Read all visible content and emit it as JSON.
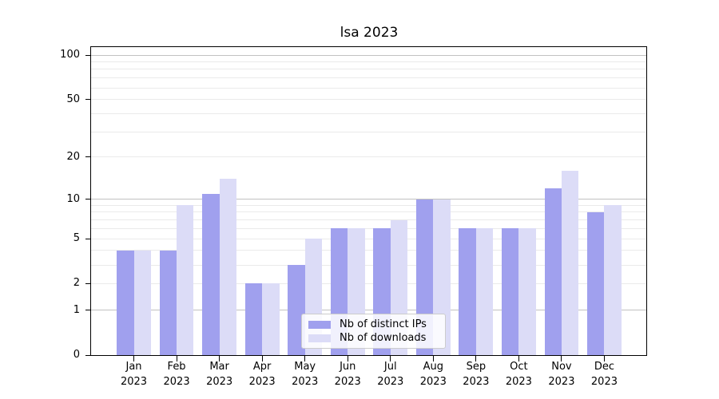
{
  "title": "lsa 2023",
  "legend": {
    "items": [
      {
        "label": "Nb of distinct IPs",
        "color": "#a0a0ee"
      },
      {
        "label": "Nb of downloads",
        "color": "#dcdcf7"
      }
    ]
  },
  "colors": {
    "axis": "#000000",
    "grid_major": "#c2c2c2",
    "grid_minor": "#eaeaea",
    "background": "#ffffff",
    "legend_border": "#cccccc",
    "bar_dark": "#a0a0ee",
    "bar_light": "#dcdcf7"
  },
  "chart_data": {
    "type": "bar",
    "title": "lsa 2023",
    "categories": [
      "Jan 2023",
      "Feb 2023",
      "Mar 2023",
      "Apr 2023",
      "May 2023",
      "Jun 2023",
      "Jul 2023",
      "Aug 2023",
      "Sep 2023",
      "Oct 2023",
      "Nov 2023",
      "Dec 2023"
    ],
    "series": [
      {
        "name": "Nb of distinct IPs",
        "color": "#a0a0ee",
        "values": [
          4,
          4,
          11,
          2,
          3,
          6,
          6,
          10,
          6,
          6,
          12,
          8
        ]
      },
      {
        "name": "Nb of downloads",
        "color": "#dcdcf7",
        "values": [
          4,
          9,
          14,
          2,
          5,
          6,
          7,
          10,
          6,
          6,
          16,
          9
        ]
      }
    ],
    "xlabel": "",
    "ylabel": "",
    "yscale": "log1p",
    "ylim": [
      0,
      113
    ],
    "yticks": [
      0,
      1,
      2,
      5,
      10,
      20,
      50,
      100
    ],
    "grid_major": [
      1,
      10,
      100
    ],
    "grid_minor": [
      2,
      3,
      4,
      5,
      6,
      7,
      8,
      9,
      20,
      30,
      40,
      50,
      60,
      70,
      80,
      90
    ],
    "grid": "on",
    "legend_position": "lower-center"
  }
}
